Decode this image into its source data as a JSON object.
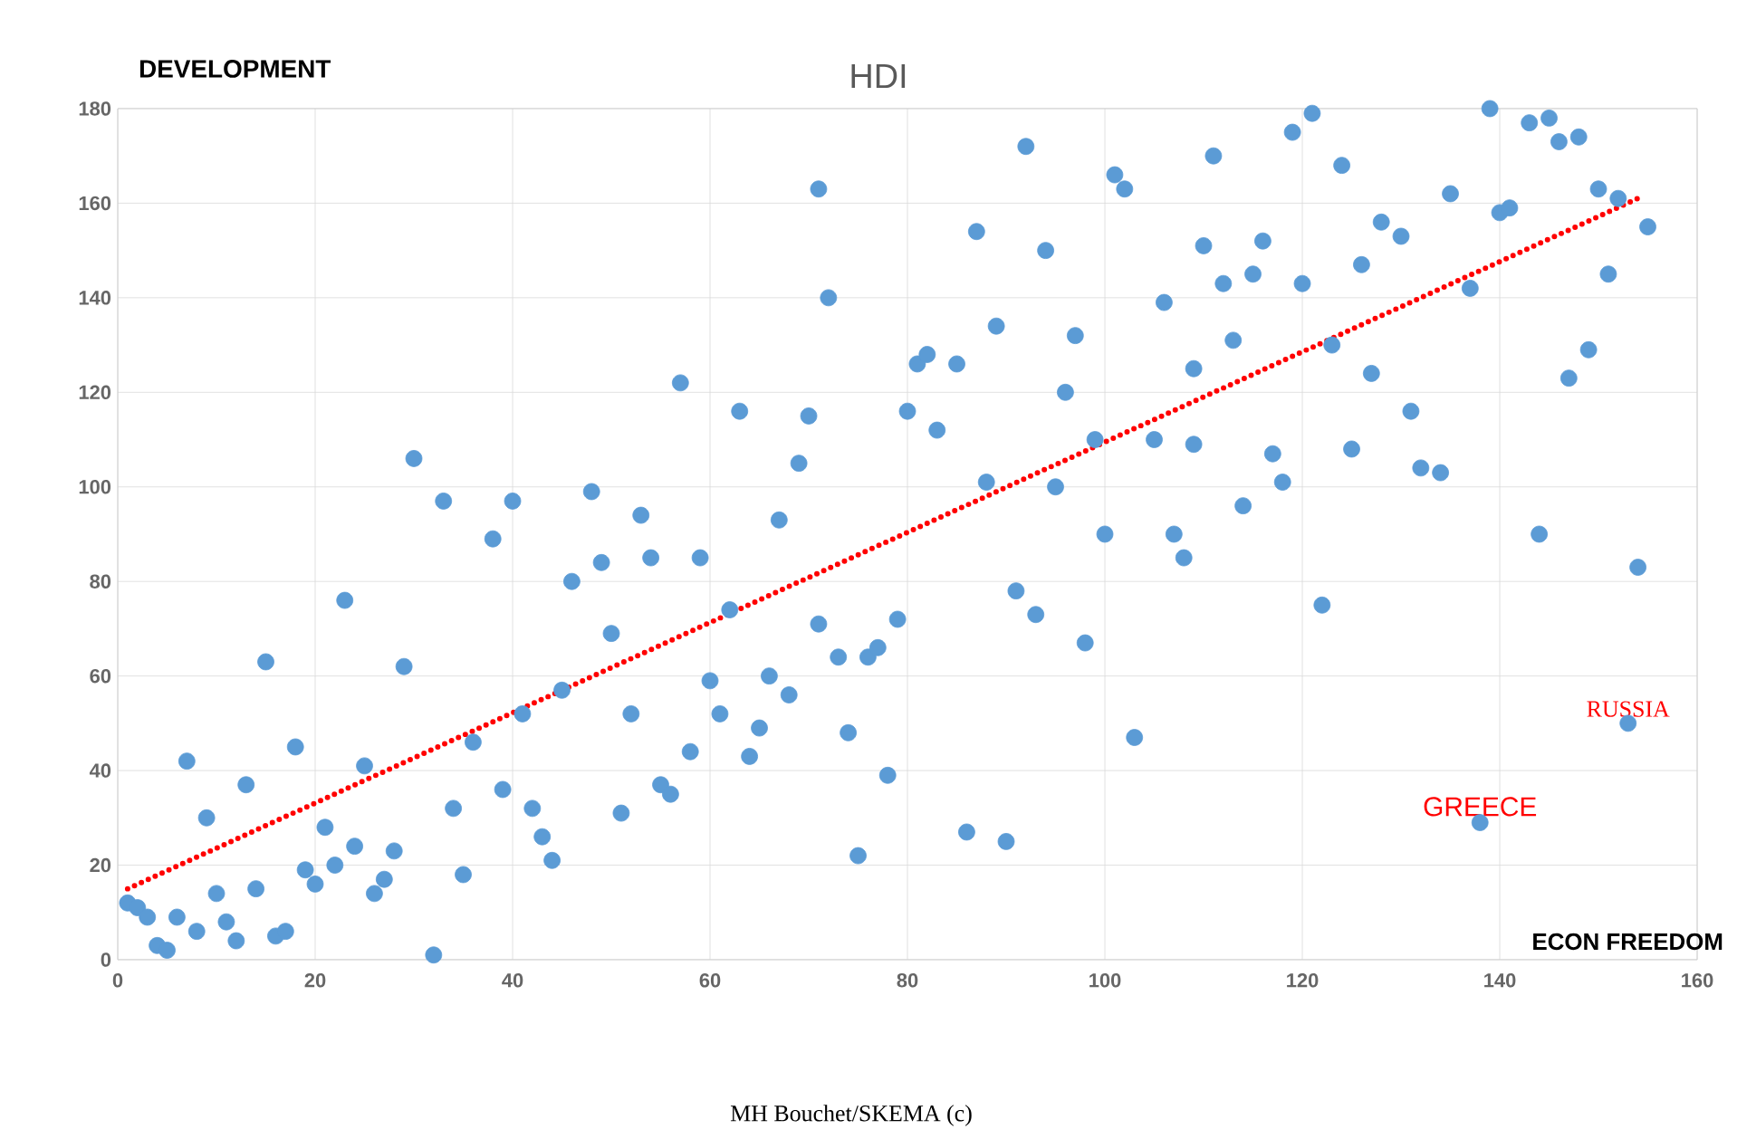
{
  "chart_data": {
    "type": "scatter",
    "title": "HDI",
    "xlabel": "ECON FREEDOM",
    "ylabel": "DEVELOPMENT",
    "xlim": [
      0,
      160
    ],
    "xticks": [
      0,
      20,
      40,
      60,
      80,
      100,
      120,
      140,
      160
    ],
    "ylim": [
      0,
      180
    ],
    "yticks": [
      0,
      20,
      40,
      60,
      80,
      100,
      120,
      140,
      160,
      180
    ],
    "grid": true,
    "marker": "circle",
    "series": [
      {
        "color": "#5b9bd5",
        "x": [
          1,
          2,
          3,
          4,
          5,
          6,
          7,
          8,
          9,
          10,
          11,
          12,
          13,
          14,
          15,
          16,
          17,
          18,
          19,
          20,
          21,
          22,
          23,
          24,
          25,
          26,
          27,
          28,
          29,
          30,
          32,
          33,
          34,
          35,
          36,
          38,
          39,
          40,
          41,
          42,
          43,
          44,
          45,
          46,
          48,
          49,
          50,
          51,
          52,
          53,
          54,
          55,
          56,
          57,
          58,
          59,
          60,
          61,
          62,
          63,
          64,
          65,
          66,
          67,
          68,
          69,
          70,
          71,
          71,
          72,
          73,
          74,
          75,
          76,
          77,
          78,
          79,
          80,
          81,
          82,
          83,
          85,
          86,
          87,
          88,
          89,
          90,
          91,
          92,
          93,
          94,
          95,
          96,
          97,
          98,
          99,
          100,
          101,
          102,
          103,
          105,
          106,
          107,
          108,
          109,
          109,
          110,
          111,
          112,
          113,
          114,
          115,
          116,
          117,
          118,
          119,
          120,
          121,
          122,
          123,
          124,
          125,
          126,
          127,
          128,
          130,
          131,
          132,
          134,
          135,
          137,
          138,
          139,
          140,
          141,
          143,
          144,
          145,
          146,
          147,
          148,
          149,
          150,
          151,
          152,
          153,
          154,
          155
        ],
        "values": [
          12,
          11,
          9,
          3,
          2,
          9,
          42,
          6,
          30,
          14,
          8,
          4,
          37,
          15,
          63,
          5,
          6,
          45,
          19,
          16,
          28,
          20,
          76,
          24,
          41,
          14,
          17,
          23,
          62,
          106,
          1,
          97,
          32,
          18,
          46,
          89,
          36,
          97,
          52,
          32,
          26,
          21,
          57,
          80,
          99,
          84,
          69,
          31,
          52,
          94,
          85,
          37,
          35,
          122,
          44,
          85,
          59,
          52,
          74,
          116,
          43,
          49,
          60,
          93,
          56,
          105,
          115,
          71,
          163,
          140,
          64,
          48,
          22,
          64,
          66,
          39,
          72,
          116,
          126,
          128,
          112,
          126,
          27,
          154,
          101,
          134,
          25,
          78,
          172,
          73,
          150,
          100,
          120,
          132,
          67,
          110,
          90,
          166,
          163,
          47,
          110,
          139,
          90,
          85,
          125,
          109,
          151,
          170,
          143,
          131,
          96,
          145,
          152,
          107,
          101,
          175,
          143,
          179,
          75,
          130,
          168,
          108,
          147,
          124,
          156,
          153,
          116,
          104,
          103,
          162,
          142,
          29,
          180,
          158,
          159,
          177,
          90,
          178,
          173,
          123,
          174,
          129,
          163,
          145,
          161,
          50,
          83,
          155
        ]
      },
      {
        "type": "line",
        "color": "#ff0000",
        "line_style": "dotted",
        "marker": "none",
        "x": [
          1,
          154
        ],
        "values": [
          15,
          161
        ]
      }
    ],
    "annotations": [
      {
        "text": "RUSSIA",
        "x": 153,
        "y": 50
      },
      {
        "text": "GREECE",
        "x": 138,
        "y": 29
      },
      "MH Bouchet/SKEMA (c)"
    ]
  }
}
